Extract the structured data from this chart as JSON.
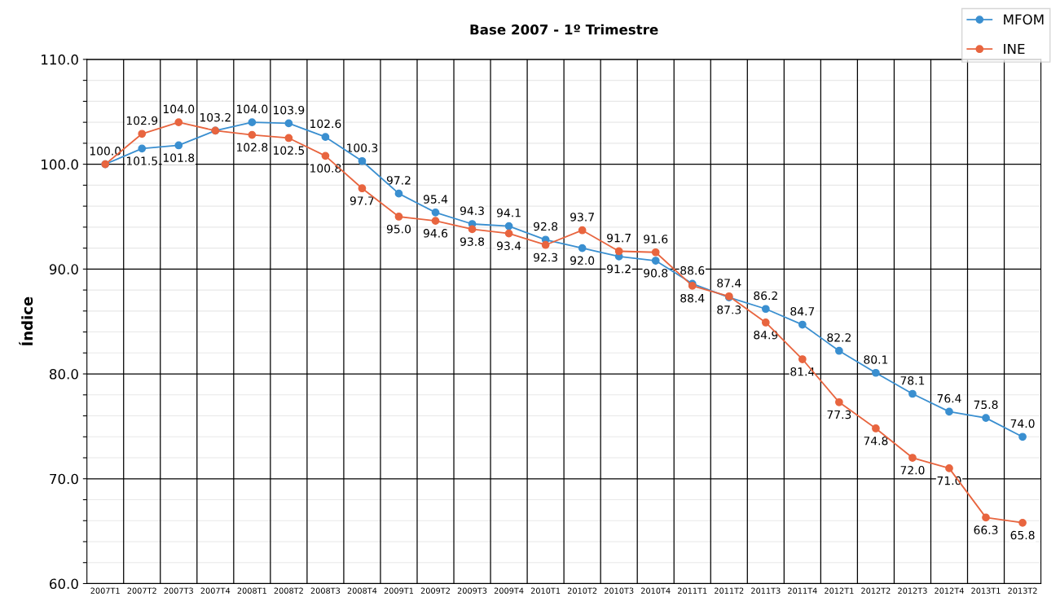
{
  "chart_data": {
    "type": "line",
    "title": "Base 2007 - 1º Trimestre",
    "ylabel": "Índice",
    "categories": [
      "2007T1",
      "2007T2",
      "2007T3",
      "2007T4",
      "2008T1",
      "2008T2",
      "2008T3",
      "2008T4",
      "2009T1",
      "2009T2",
      "2009T3",
      "2009T4",
      "2010T1",
      "2010T2",
      "2010T3",
      "2010T4",
      "2011T1",
      "2011T2",
      "2011T3",
      "2011T4",
      "2012T1",
      "2012T2",
      "2012T3",
      "2012T4",
      "2013T1",
      "2013T2"
    ],
    "series": [
      {
        "name": "MFOM",
        "color": "#3a8fd0",
        "values": [
          100.0,
          101.5,
          101.8,
          103.2,
          104.0,
          103.9,
          102.6,
          100.3,
          97.2,
          95.4,
          94.3,
          94.1,
          92.8,
          92.0,
          91.2,
          90.8,
          88.6,
          87.3,
          86.2,
          84.7,
          82.2,
          80.1,
          78.1,
          76.4,
          75.8,
          74.0
        ],
        "value_labels": [
          "100.0",
          "101.5",
          "101.8",
          "103.2",
          "104.0",
          "103.9",
          "102.6",
          "100.3",
          "97.2",
          "95.4",
          "94.3",
          "94.1",
          "92.8",
          "92.0",
          "91.2",
          "90.8",
          "88.6",
          "87.3",
          "86.2",
          "84.7",
          "82.2",
          "80.1",
          "78.1",
          "76.4",
          "75.8",
          "74.0"
        ]
      },
      {
        "name": "INE",
        "color": "#e8653f",
        "values": [
          100.0,
          102.9,
          104.0,
          103.2,
          102.8,
          102.5,
          100.8,
          97.7,
          95.0,
          94.6,
          93.8,
          93.4,
          92.3,
          93.7,
          91.7,
          91.6,
          88.4,
          87.4,
          84.9,
          81.4,
          77.3,
          74.8,
          72.0,
          71.0,
          66.3,
          65.8
        ],
        "value_labels": [
          null,
          "102.9",
          "104.0",
          null,
          "102.8",
          "102.5",
          "100.8",
          "97.7",
          "95.0",
          "94.6",
          "93.8",
          "93.4",
          "92.3",
          "93.7",
          "91.7",
          "91.6",
          "88.4",
          "87.4",
          "84.9",
          "81.4",
          "77.3",
          "74.8",
          "72.0",
          "71.0",
          "66.3",
          "65.8"
        ]
      }
    ],
    "ylim": [
      60,
      110
    ],
    "yticks": [
      {
        "value": 60,
        "label": "60.0"
      },
      {
        "value": 62,
        "label": null
      },
      {
        "value": 64,
        "label": null
      },
      {
        "value": 66,
        "label": null
      },
      {
        "value": 68,
        "label": null
      },
      {
        "value": 70,
        "label": "70.0"
      },
      {
        "value": 72,
        "label": null
      },
      {
        "value": 74,
        "label": null
      },
      {
        "value": 76,
        "label": null
      },
      {
        "value": 78,
        "label": null
      },
      {
        "value": 80,
        "label": "80.0"
      },
      {
        "value": 82,
        "label": null
      },
      {
        "value": 84,
        "label": null
      },
      {
        "value": 86,
        "label": null
      },
      {
        "value": 88,
        "label": null
      },
      {
        "value": 90,
        "label": "90.0"
      },
      {
        "value": 92,
        "label": null
      },
      {
        "value": 94,
        "label": null
      },
      {
        "value": 96,
        "label": null
      },
      {
        "value": 98,
        "label": null
      },
      {
        "value": 100,
        "label": "100.0"
      },
      {
        "value": 102,
        "label": null
      },
      {
        "value": 104,
        "label": null
      },
      {
        "value": 106,
        "label": null
      },
      {
        "value": 108,
        "label": null
      },
      {
        "value": 110,
        "label": "110.0"
      }
    ],
    "grid": true,
    "legend": "top right",
    "marker": "circle",
    "line_style": "solid"
  }
}
